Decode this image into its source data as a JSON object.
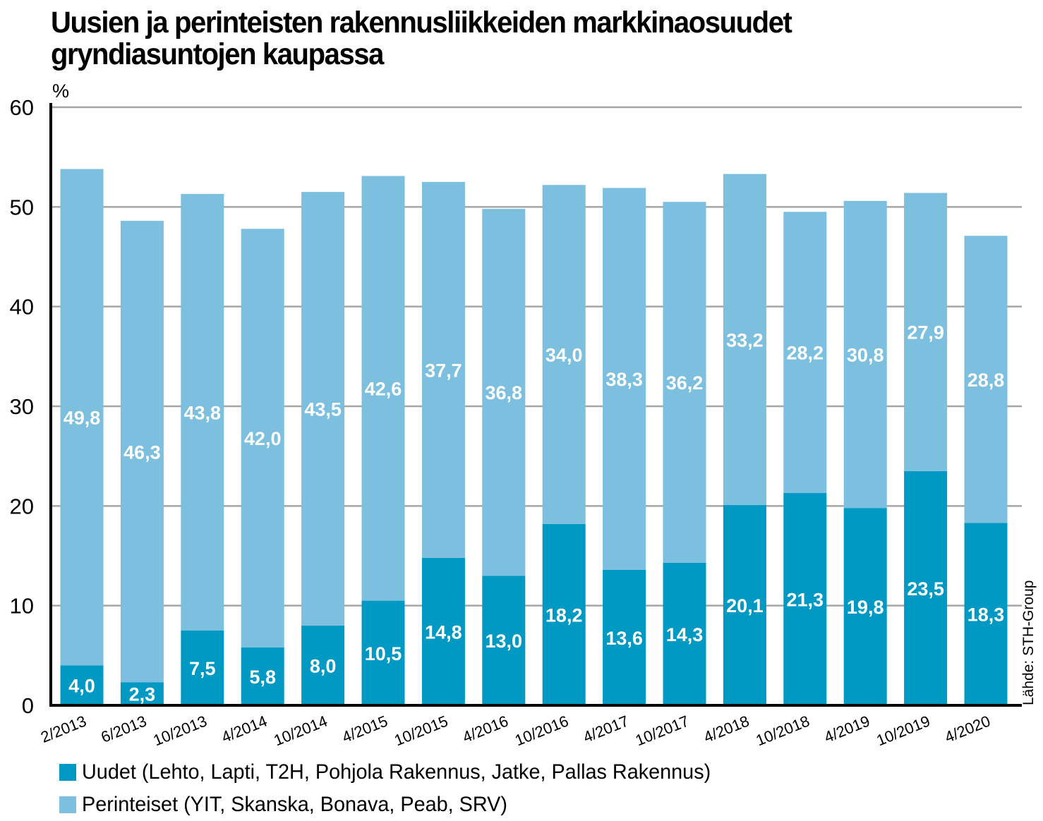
{
  "title_line1": "Uusien ja perinteisten rakennusliikkeiden markkinaosuudet",
  "title_line2": "gryndiasuntojen kaupassa",
  "source": "Lähde: STH-Group",
  "colors": {
    "uudet": "#0099c4",
    "perinteiset": "#7cbfde",
    "grid": "#a6a6a6",
    "axis": "#000000",
    "label": "#ffffff"
  },
  "legend": [
    {
      "key": "uudet",
      "label": "Uudet (Lehto, Lapti, T2H, Pohjola Rakennus, Jatke, Pallas Rakennus)"
    },
    {
      "key": "perinteiset",
      "label": "Perinteiset (YIT, Skanska, Bonava, Peab, SRV)"
    }
  ],
  "chart_data": {
    "type": "bar",
    "stacked": true,
    "title": "Uusien ja perinteisten rakennusliikkeiden markkinaosuudet gryndiasuntojen kaupassa",
    "ylabel": "%",
    "ylim": [
      0,
      60
    ],
    "yticks": [
      0,
      10,
      20,
      30,
      40,
      50,
      60
    ],
    "grid": true,
    "legend_position": "bottom-left",
    "categories": [
      "2/2013",
      "6/2013",
      "10/2013",
      "4/2014",
      "10/2014",
      "4/2015",
      "10/2015",
      "4/2016",
      "10/2016",
      "4/2017",
      "10/2017",
      "4/2018",
      "10/2018",
      "4/2019",
      "10/2019",
      "4/2020"
    ],
    "series": [
      {
        "name": "Uudet (Lehto, Lapti, T2H, Pohjola Rakennus, Jatke, Pallas Rakennus)",
        "values": [
          4.0,
          2.3,
          7.5,
          5.8,
          8.0,
          10.5,
          14.8,
          13.0,
          18.2,
          13.6,
          14.3,
          20.1,
          21.3,
          19.8,
          23.5,
          18.3
        ],
        "labels": [
          "4,0",
          "2,3",
          "7,5",
          "5,8",
          "8,0",
          "10,5",
          "14,8",
          "13,0",
          "18,2",
          "13,6",
          "14,3",
          "20,1",
          "21,3",
          "19,8",
          "23,5",
          "18,3"
        ]
      },
      {
        "name": "Perinteiset (YIT, Skanska, Bonava, Peab, SRV)",
        "values": [
          49.8,
          46.3,
          43.8,
          42.0,
          43.5,
          42.6,
          37.7,
          36.8,
          34.0,
          38.3,
          36.2,
          33.2,
          28.2,
          30.8,
          27.9,
          28.8
        ],
        "labels": [
          "49,8",
          "46,3",
          "43,8",
          "42,0",
          "43,5",
          "42,6",
          "37,7",
          "36,8",
          "34,0",
          "38,3",
          "36,2",
          "33,2",
          "28,2",
          "30,8",
          "27,9",
          "28,8"
        ]
      }
    ]
  }
}
